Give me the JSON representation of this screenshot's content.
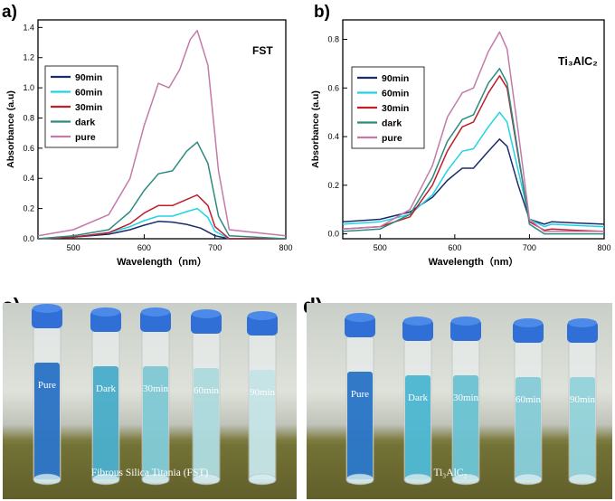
{
  "panels": {
    "a": "a)",
    "b": "b)",
    "c": "c)",
    "d": "d)"
  },
  "colors": {
    "90min": "#1a2b6b",
    "60min": "#22d3e6",
    "30min": "#c01e2a",
    "dark": "#2c8a7e",
    "pure": "#c47aa9"
  },
  "chart_data": [
    {
      "type": "line",
      "panel": "a",
      "annotation": "FST",
      "xlabel": "Wavelength（nm）",
      "ylabel": "Absorbance (a.u)",
      "xlim": [
        450,
        800
      ],
      "ylim": [
        0,
        1.45
      ],
      "xticks": [
        500,
        600,
        700,
        800
      ],
      "yticks": [
        0.0,
        0.2,
        0.4,
        0.6,
        0.8,
        1.0,
        1.2,
        1.4
      ],
      "ytick_labels": [
        "0.0",
        "0.2",
        "0.4",
        "0.6",
        "0.8",
        "1.0",
        "1.2",
        "1.4"
      ],
      "legend": [
        "90min",
        "60min",
        "30min",
        "dark",
        "pure"
      ],
      "legend_position": "upper-left",
      "series": [
        {
          "name": "90min",
          "points": [
            [
              450,
              0.0
            ],
            [
              500,
              0.01
            ],
            [
              550,
              0.03
            ],
            [
              580,
              0.06
            ],
            [
              600,
              0.09
            ],
            [
              620,
              0.115
            ],
            [
              640,
              0.11
            ],
            [
              660,
              0.095
            ],
            [
              680,
              0.07
            ],
            [
              700,
              0.02
            ],
            [
              720,
              0.0
            ],
            [
              800,
              0.0
            ]
          ]
        },
        {
          "name": "60min",
          "points": [
            [
              450,
              0.0
            ],
            [
              500,
              0.01
            ],
            [
              550,
              0.04
            ],
            [
              580,
              0.08
            ],
            [
              600,
              0.12
            ],
            [
              620,
              0.15
            ],
            [
              640,
              0.15
            ],
            [
              660,
              0.18
            ],
            [
              675,
              0.2
            ],
            [
              690,
              0.14
            ],
            [
              700,
              0.05
            ],
            [
              720,
              0.0
            ],
            [
              800,
              0.0
            ]
          ]
        },
        {
          "name": "30min",
          "points": [
            [
              450,
              0.0
            ],
            [
              500,
              0.01
            ],
            [
              550,
              0.04
            ],
            [
              580,
              0.1
            ],
            [
              600,
              0.17
            ],
            [
              620,
              0.22
            ],
            [
              640,
              0.22
            ],
            [
              660,
              0.26
            ],
            [
              675,
              0.29
            ],
            [
              690,
              0.22
            ],
            [
              700,
              0.08
            ],
            [
              720,
              0.0
            ],
            [
              800,
              0.0
            ]
          ]
        },
        {
          "name": "dark",
          "points": [
            [
              450,
              0.0
            ],
            [
              500,
              0.02
            ],
            [
              550,
              0.06
            ],
            [
              580,
              0.18
            ],
            [
              600,
              0.32
            ],
            [
              620,
              0.43
            ],
            [
              640,
              0.45
            ],
            [
              660,
              0.58
            ],
            [
              675,
              0.64
            ],
            [
              690,
              0.5
            ],
            [
              705,
              0.15
            ],
            [
              720,
              0.02
            ],
            [
              800,
              0.0
            ]
          ]
        },
        {
          "name": "pure",
          "points": [
            [
              450,
              0.02
            ],
            [
              500,
              0.06
            ],
            [
              550,
              0.16
            ],
            [
              580,
              0.4
            ],
            [
              600,
              0.75
            ],
            [
              620,
              1.03
            ],
            [
              635,
              1.0
            ],
            [
              650,
              1.12
            ],
            [
              665,
              1.32
            ],
            [
              675,
              1.38
            ],
            [
              690,
              1.15
            ],
            [
              705,
              0.45
            ],
            [
              720,
              0.06
            ],
            [
              800,
              0.02
            ]
          ]
        }
      ]
    },
    {
      "type": "line",
      "panel": "b",
      "annotation": "Ti₃AlC₂",
      "xlabel": "Wavelength（nm）",
      "ylabel": "Absorbance (a.u)",
      "xlim": [
        450,
        800
      ],
      "ylim": [
        -0.02,
        0.88
      ],
      "xticks": [
        500,
        600,
        700,
        800
      ],
      "yticks": [
        0.0,
        0.2,
        0.4,
        0.6,
        0.8
      ],
      "ytick_labels": [
        "0.0",
        "0.2",
        "0.4",
        "0.6",
        "0.8"
      ],
      "legend": [
        "90min",
        "60min",
        "30min",
        "dark",
        "pure"
      ],
      "legend_position": "upper-left",
      "series": [
        {
          "name": "90min",
          "points": [
            [
              450,
              0.05
            ],
            [
              500,
              0.06
            ],
            [
              540,
              0.09
            ],
            [
              570,
              0.15
            ],
            [
              590,
              0.22
            ],
            [
              610,
              0.27
            ],
            [
              625,
              0.27
            ],
            [
              645,
              0.34
            ],
            [
              660,
              0.39
            ],
            [
              670,
              0.36
            ],
            [
              685,
              0.2
            ],
            [
              700,
              0.06
            ],
            [
              720,
              0.04
            ],
            [
              730,
              0.05
            ],
            [
              760,
              0.045
            ],
            [
              800,
              0.04
            ]
          ]
        },
        {
          "name": "60min",
          "points": [
            [
              450,
              0.04
            ],
            [
              500,
              0.05
            ],
            [
              540,
              0.08
            ],
            [
              570,
              0.16
            ],
            [
              590,
              0.26
            ],
            [
              610,
              0.34
            ],
            [
              625,
              0.35
            ],
            [
              645,
              0.44
            ],
            [
              660,
              0.5
            ],
            [
              670,
              0.46
            ],
            [
              685,
              0.26
            ],
            [
              700,
              0.06
            ],
            [
              720,
              0.03
            ],
            [
              730,
              0.04
            ],
            [
              760,
              0.035
            ],
            [
              800,
              0.03
            ]
          ]
        },
        {
          "name": "30min",
          "points": [
            [
              450,
              0.02
            ],
            [
              500,
              0.03
            ],
            [
              540,
              0.07
            ],
            [
              570,
              0.2
            ],
            [
              590,
              0.34
            ],
            [
              610,
              0.44
            ],
            [
              625,
              0.46
            ],
            [
              645,
              0.58
            ],
            [
              660,
              0.65
            ],
            [
              670,
              0.6
            ],
            [
              685,
              0.32
            ],
            [
              700,
              0.05
            ],
            [
              720,
              0.015
            ],
            [
              730,
              0.02
            ],
            [
              760,
              0.015
            ],
            [
              800,
              0.01
            ]
          ]
        },
        {
          "name": "dark",
          "points": [
            [
              450,
              0.01
            ],
            [
              500,
              0.02
            ],
            [
              540,
              0.08
            ],
            [
              570,
              0.23
            ],
            [
              590,
              0.38
            ],
            [
              610,
              0.47
            ],
            [
              625,
              0.49
            ],
            [
              645,
              0.62
            ],
            [
              660,
              0.68
            ],
            [
              670,
              0.62
            ],
            [
              685,
              0.33
            ],
            [
              700,
              0.04
            ],
            [
              720,
              0.0
            ],
            [
              760,
              0.0
            ],
            [
              800,
              0.0
            ]
          ]
        },
        {
          "name": "pure",
          "points": [
            [
              450,
              0.02
            ],
            [
              500,
              0.03
            ],
            [
              540,
              0.1
            ],
            [
              570,
              0.28
            ],
            [
              590,
              0.48
            ],
            [
              610,
              0.58
            ],
            [
              625,
              0.6
            ],
            [
              645,
              0.75
            ],
            [
              660,
              0.83
            ],
            [
              670,
              0.76
            ],
            [
              685,
              0.42
            ],
            [
              700,
              0.06
            ],
            [
              720,
              0.01
            ],
            [
              760,
              0.01
            ],
            [
              800,
              0.01
            ]
          ]
        }
      ]
    }
  ],
  "photos": {
    "c": {
      "vials": [
        "Pure",
        "Dark",
        "30min",
        "60min",
        "90min"
      ],
      "caption": "Fibrous Silica Titania (FST)"
    },
    "d": {
      "vials": [
        "Pure",
        "Dark",
        "30min",
        "60min",
        "90min"
      ],
      "caption": "Ti₃AlC₂"
    }
  }
}
